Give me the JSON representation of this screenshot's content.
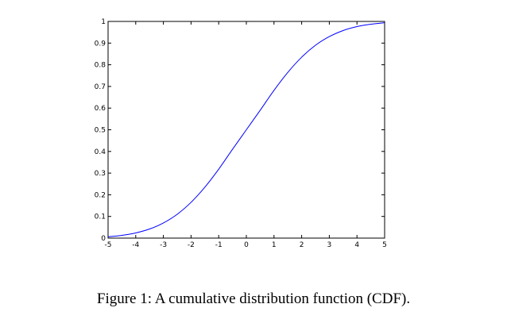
{
  "caption": "Figure 1: A cumulative distribution function (CDF).",
  "chart_data": {
    "type": "line",
    "title": "",
    "xlabel": "",
    "ylabel": "",
    "xlim": [
      -5,
      5
    ],
    "ylim": [
      0,
      1
    ],
    "x_ticks": [
      -5,
      -4,
      -3,
      -2,
      -1,
      0,
      1,
      2,
      3,
      4,
      5
    ],
    "x_tick_labels": [
      "-5",
      "-4",
      "-3",
      "-2",
      "-1",
      "0",
      "1",
      "2",
      "3",
      "4",
      "5"
    ],
    "y_ticks": [
      0,
      0.1,
      0.2,
      0.3,
      0.4,
      0.5,
      0.6,
      0.7,
      0.8,
      0.9,
      1
    ],
    "y_tick_labels": [
      "0",
      "0.1",
      "0.2",
      "0.3",
      "0.4",
      "0.5",
      "0.6",
      "0.7",
      "0.8",
      "0.9",
      "1"
    ],
    "grid": false,
    "line_color": "#0000ff",
    "series": [
      {
        "x": [
          -5,
          -4.5,
          -4,
          -3.5,
          -3,
          -2.5,
          -2,
          -1.5,
          -1,
          -0.5,
          0,
          0.5,
          1,
          1.5,
          2,
          2.5,
          3,
          3.5,
          4,
          4.5,
          5
        ],
        "values": [
          0.006,
          0.013,
          0.024,
          0.042,
          0.07,
          0.11,
          0.165,
          0.235,
          0.318,
          0.41,
          0.5,
          0.59,
          0.682,
          0.765,
          0.835,
          0.89,
          0.93,
          0.958,
          0.976,
          0.987,
          0.994
        ]
      }
    ]
  }
}
